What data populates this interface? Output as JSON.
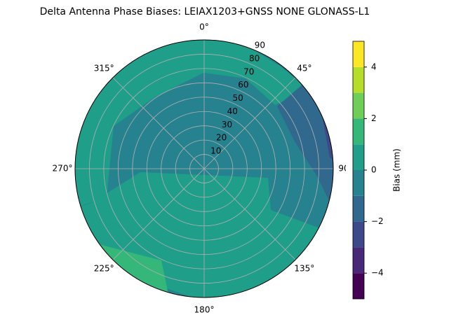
{
  "chart_data": {
    "type": "polar-contour",
    "title": "Delta Antenna Phase Biases: LEIAX1203+GNSS  NONE GLONASS-L1",
    "rlim": [
      0,
      90
    ],
    "rticks": [
      10,
      20,
      30,
      40,
      50,
      60,
      70,
      80,
      90
    ],
    "thetaticks": [
      {
        "value": 0,
        "label": "0°"
      },
      {
        "value": 45,
        "label": "45°"
      },
      {
        "value": 90,
        "label": "90°"
      },
      {
        "value": 135,
        "label": "135°"
      },
      {
        "value": 180,
        "label": "180°"
      },
      {
        "value": 225,
        "label": "225°"
      },
      {
        "value": 270,
        "label": "270°"
      },
      {
        "value": 315,
        "label": "315°"
      }
    ],
    "grid": true,
    "region_values": [
      -0.5,
      0.5,
      0.5,
      1.5,
      -1.5,
      -2.5
    ],
    "colorbar": {
      "label": "Bias (mm)",
      "levels": [
        -5,
        -4,
        -3,
        -2,
        -1,
        0,
        1,
        2,
        3,
        4,
        5
      ],
      "colors": [
        "#440154",
        "#482878",
        "#3e4989",
        "#31688e",
        "#26828e",
        "#1f9e89",
        "#35b779",
        "#6ece58",
        "#b5de2b",
        "#fde725"
      ],
      "ticks": [
        {
          "value": -4,
          "label": "−4"
        },
        {
          "value": -2,
          "label": "−2"
        },
        0,
        2,
        4
      ]
    }
  }
}
